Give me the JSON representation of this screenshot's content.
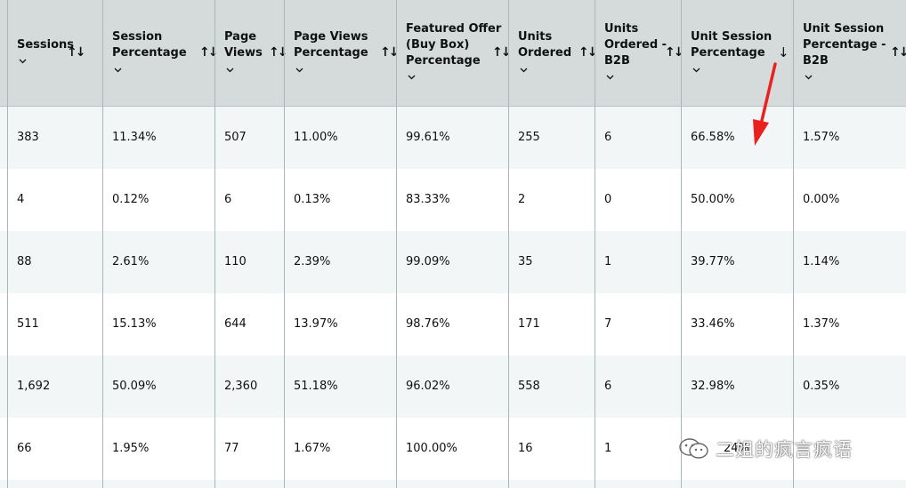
{
  "table": {
    "columns": [
      {
        "key": "sessions",
        "label": "Sessions",
        "sort": "both"
      },
      {
        "key": "session_pct",
        "label": "Session\nPercentage",
        "sort": "both"
      },
      {
        "key": "page_views",
        "label": "Page\nViews",
        "sort": "both"
      },
      {
        "key": "page_views_pct",
        "label": "Page Views\nPercentage",
        "sort": "both"
      },
      {
        "key": "featured_offer_pct",
        "label": "Featured Offer\n(Buy Box)\nPercentage",
        "sort": "both"
      },
      {
        "key": "units_ordered",
        "label": "Units\nOrdered",
        "sort": "both"
      },
      {
        "key": "units_ordered_b2b",
        "label": "Units\nOrdered -\nB2B",
        "sort": "both"
      },
      {
        "key": "unit_session_pct",
        "label": "Unit Session\nPercentage",
        "sort": "descending"
      },
      {
        "key": "unit_session_pct_b2b",
        "label": "Unit Session\nPercentage -\nB2B",
        "sort": "both"
      }
    ],
    "rows": [
      [
        "383",
        "11.34%",
        "507",
        "11.00%",
        "99.61%",
        "255",
        "6",
        "66.58%",
        "1.57%"
      ],
      [
        "4",
        "0.12%",
        "6",
        "0.13%",
        "83.33%",
        "2",
        "0",
        "50.00%",
        "0.00%"
      ],
      [
        "88",
        "2.61%",
        "110",
        "2.39%",
        "99.09%",
        "35",
        "1",
        "39.77%",
        "1.14%"
      ],
      [
        "511",
        "15.13%",
        "644",
        "13.97%",
        "98.76%",
        "171",
        "7",
        "33.46%",
        "1.37%"
      ],
      [
        "1,692",
        "50.09%",
        "2,360",
        "51.18%",
        "96.02%",
        "558",
        "6",
        "32.98%",
        "0.35%"
      ],
      [
        "66",
        "1.95%",
        "77",
        "1.67%",
        "100.00%",
        "16",
        "1",
        "24%",
        ""
      ]
    ]
  },
  "watermark": {
    "text": "二姐的疯言疯语",
    "icon": "wechat-icon"
  },
  "colors": {
    "header_bg": "#d5dbdb",
    "row_alt_bg": "#f3f6f6",
    "row_bg": "#ffffff",
    "annotation_arrow": "#e8231f"
  }
}
